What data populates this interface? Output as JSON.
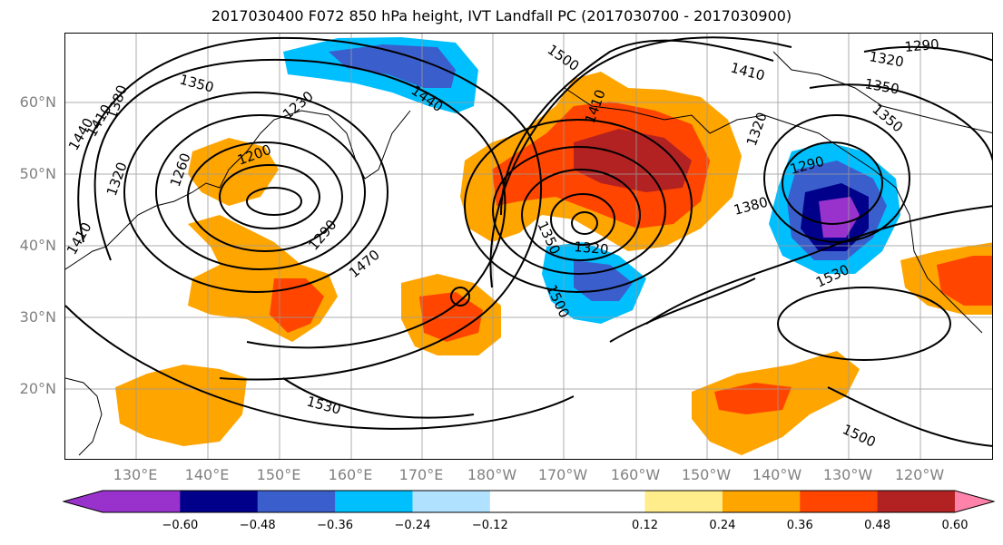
{
  "title": "2017030400 F072 850 hPa height, IVT Landfall PC (2017030700 - 2017030900)",
  "lat_labels": [
    "60°N",
    "50°N",
    "40°N",
    "30°N",
    "20°N"
  ],
  "lon_labels": [
    "130°E",
    "140°E",
    "150°E",
    "160°E",
    "170°E",
    "180°W",
    "170°W",
    "160°W",
    "150°W",
    "140°W",
    "130°W",
    "120°W"
  ],
  "contour_labels": [
    "1350",
    "1380",
    "1440",
    "1410",
    "1320",
    "1260",
    "1200",
    "1230",
    "1290",
    "1470",
    "1410",
    "1440",
    "1500",
    "1410",
    "1320",
    "1380",
    "1530",
    "1500",
    "1350",
    "1290",
    "1350",
    "1320",
    "1290",
    "1530",
    "1500",
    "1410",
    "1320",
    "1350"
  ],
  "colorbar": {
    "colors": [
      "#9932CC",
      "#00008B",
      "#3A5FCD",
      "#00BFFF",
      "#B0E2FF",
      "#FFFFFF",
      "#FFFFFF",
      "#FFEC8B",
      "#FFA500",
      "#FF4500",
      "#B22222",
      "#FF82AB"
    ],
    "tick_labels": [
      "−0.60",
      "−0.48",
      "−0.36",
      "−0.24",
      "−0.12",
      "0.12",
      "0.24",
      "0.36",
      "0.48",
      "0.60"
    ]
  },
  "map_data": {
    "field": "850 hPa height contours (m) with IVT Landfall PC shading",
    "lat_range": [
      10,
      70
    ],
    "lon_range": [
      120,
      250
    ]
  }
}
